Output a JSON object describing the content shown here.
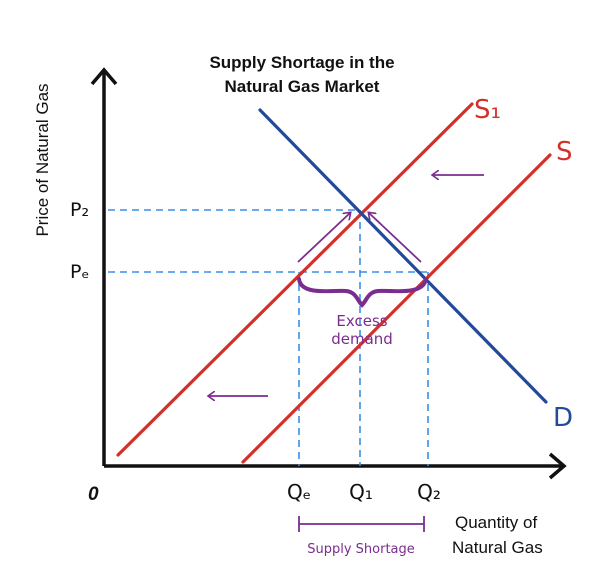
{
  "title_line1": "Supply Shortage in the",
  "title_line2": "Natural Gas Market",
  "y_axis_label": "Price of Natural Gas",
  "x_axis_label_line1": "Quantity of",
  "x_axis_label_line2": "Natural Gas",
  "origin_label": "0",
  "price_labels": {
    "p2": "P₂",
    "pe": "Pₑ"
  },
  "quantity_labels": {
    "qe": "Qₑ",
    "q1": "Q₁",
    "q2": "Q₂"
  },
  "curve_labels": {
    "s1": "S₁",
    "s": "S",
    "d": "D"
  },
  "excess_demand_line1": "Excess",
  "excess_demand_line2": "demand",
  "supply_shortage_label": "Supply Shortage",
  "colors": {
    "supply": "#d4302a",
    "demand": "#234a9a",
    "guides": "#3a8ee6",
    "annotation": "#7b2d8e",
    "axis": "#111111"
  }
}
